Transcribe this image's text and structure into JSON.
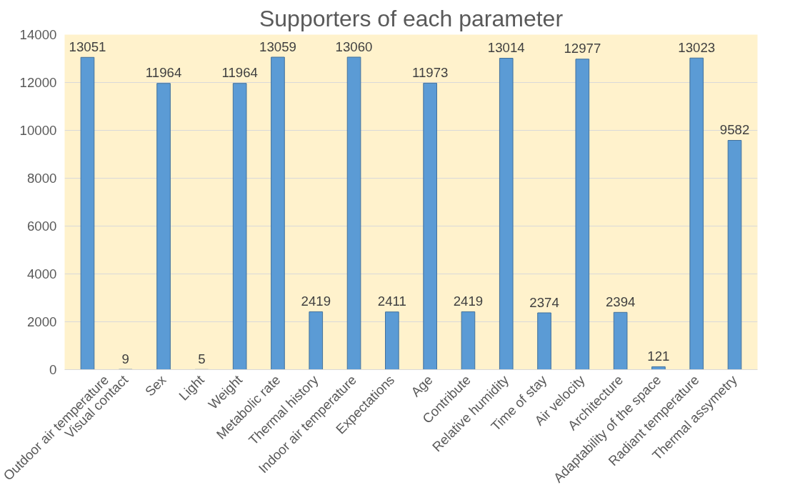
{
  "chart_data": {
    "type": "bar",
    "title": "Supporters of each parameter",
    "categories": [
      "Outdoor air temperature",
      "Visual contact",
      "Sex",
      "Light",
      "Weight",
      "Metabolic rate",
      "Thermal history",
      "Indoor air temperature",
      "Expectations",
      "Age",
      "Contribute",
      "Relative humidity",
      "Time of stay",
      "Air velocity",
      "Architecture",
      "Adaptability of the space",
      "Radiant temperature",
      "Thermal assymetry"
    ],
    "values": [
      13051,
      9,
      11964,
      5,
      11964,
      13059,
      2419,
      13060,
      2411,
      11973,
      2419,
      13014,
      2374,
      12977,
      2394,
      121,
      13023,
      9582
    ],
    "color": "#5b9bd5",
    "ylim": [
      0,
      14000
    ],
    "yticks": [
      0,
      2000,
      4000,
      6000,
      8000,
      10000,
      12000,
      14000
    ],
    "grid": "y",
    "data_labels": true
  }
}
